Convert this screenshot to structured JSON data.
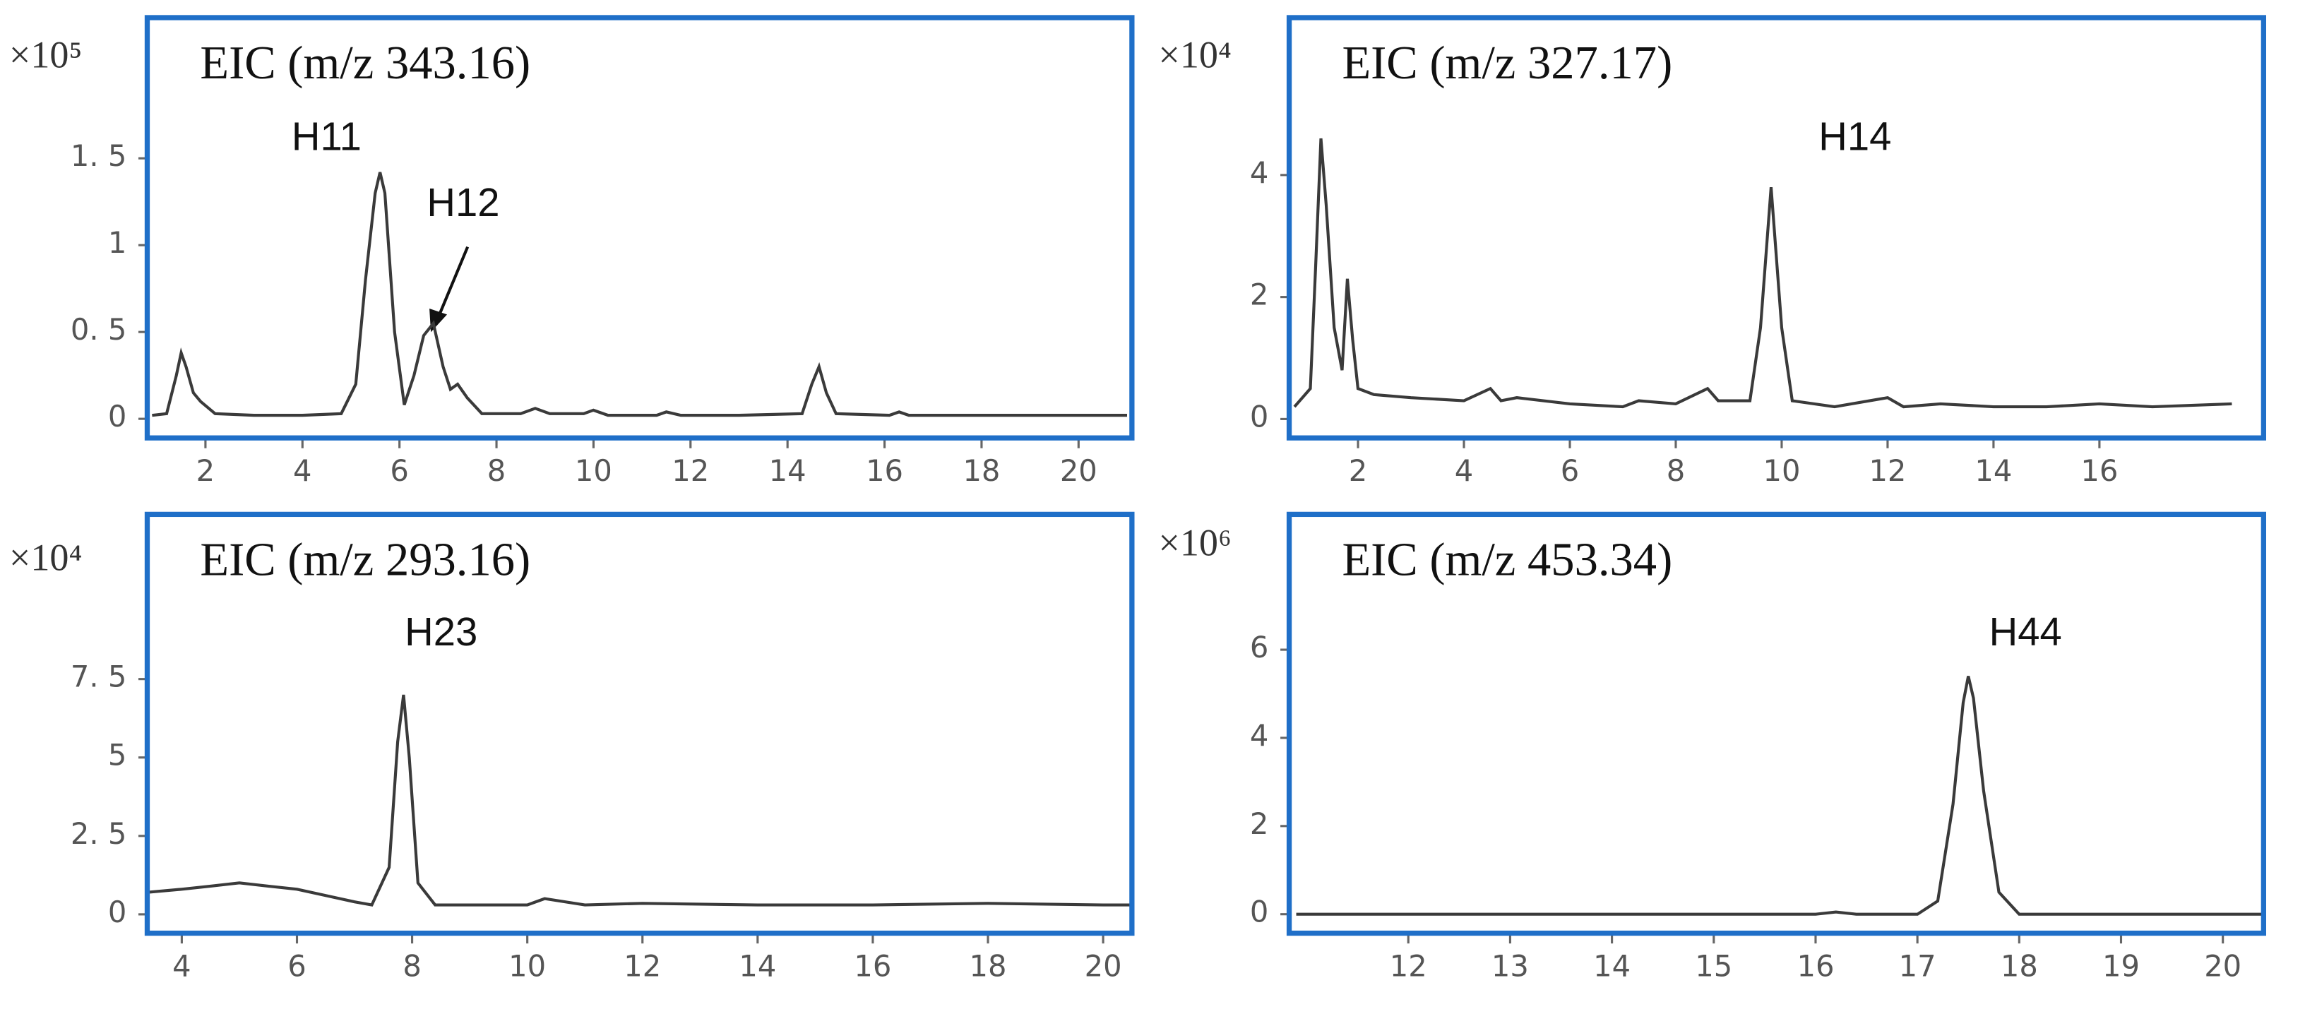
{
  "chart_data": [
    {
      "type": "line",
      "title": "EIC (m/z 343.16)",
      "scale_label": "×10⁵",
      "color": "#3a3a3a",
      "x": [
        0.9,
        1.2,
        1.4,
        1.5,
        1.6,
        1.75,
        1.9,
        2.2,
        3,
        4,
        4.8,
        5.1,
        5.3,
        5.5,
        5.6,
        5.7,
        5.9,
        6.1,
        6.3,
        6.5,
        6.7,
        6.9,
        7.05,
        7.2,
        7.4,
        7.7,
        8.5,
        8.8,
        9.1,
        9.8,
        10,
        10.3,
        11.3,
        11.5,
        11.8,
        13,
        14.3,
        14.5,
        14.65,
        14.8,
        15,
        16.1,
        16.3,
        16.5,
        18,
        20,
        21
      ],
      "values": [
        0.02,
        0.03,
        0.25,
        0.38,
        0.3,
        0.15,
        0.1,
        0.03,
        0.02,
        0.02,
        0.03,
        0.2,
        0.8,
        1.3,
        1.42,
        1.3,
        0.5,
        0.08,
        0.25,
        0.48,
        0.55,
        0.3,
        0.17,
        0.2,
        0.12,
        0.03,
        0.03,
        0.06,
        0.03,
        0.03,
        0.05,
        0.02,
        0.02,
        0.04,
        0.02,
        0.02,
        0.03,
        0.2,
        0.3,
        0.15,
        0.03,
        0.02,
        0.04,
        0.02,
        0.02,
        0.02,
        0.02
      ],
      "xlim": [
        0.8,
        21.1
      ],
      "xticks": [
        2,
        4,
        6,
        8,
        10,
        12,
        14,
        16,
        18,
        20
      ],
      "ylim": [
        -0.11,
        2.31
      ],
      "yticks": [
        0,
        {
          "value": 0.5,
          "label": "0. 5"
        },
        1,
        {
          "value": 1.5,
          "label": "1. 5"
        }
      ],
      "annotations": [
        "H11",
        "H12"
      ]
    },
    {
      "type": "line",
      "title": "EIC (m/z 327.17)",
      "scale_label": "×10⁴",
      "color": "#3a3a3a",
      "x": [
        0.8,
        1.1,
        1.2,
        1.3,
        1.4,
        1.55,
        1.7,
        1.8,
        1.9,
        2.0,
        2.3,
        3,
        4,
        4.5,
        4.7,
        5,
        6,
        7,
        7.3,
        8,
        8.6,
        8.8,
        9.4,
        9.6,
        9.8,
        10.0,
        10.2,
        11,
        12,
        12.3,
        13,
        14,
        15,
        16,
        17,
        18.5
      ],
      "values": [
        0.2,
        0.5,
        2.5,
        4.6,
        3.5,
        1.5,
        0.8,
        2.3,
        1.3,
        0.5,
        0.4,
        0.35,
        0.3,
        0.5,
        0.3,
        0.35,
        0.25,
        0.2,
        0.3,
        0.25,
        0.5,
        0.3,
        0.3,
        1.5,
        3.8,
        1.5,
        0.3,
        0.2,
        0.35,
        0.2,
        0.25,
        0.2,
        0.2,
        0.25,
        0.2,
        0.25
      ],
      "xlim": [
        0.7,
        19.1
      ],
      "xticks": [
        2,
        4,
        6,
        8,
        10,
        12,
        14,
        16
      ],
      "ylim": [
        -0.31,
        6.58
      ],
      "yticks": [
        0,
        2,
        4
      ],
      "annotations": [
        "H14"
      ]
    },
    {
      "type": "line",
      "title": "EIC (m/z 293.16)",
      "scale_label": "×10⁴",
      "color": "#3a3a3a",
      "x": [
        3.4,
        4,
        4.5,
        5,
        5.5,
        6,
        6.5,
        7,
        7.3,
        7.6,
        7.75,
        7.85,
        7.95,
        8.1,
        8.4,
        9,
        10,
        10.3,
        11,
        12,
        14,
        16,
        18,
        20,
        20.5
      ],
      "values": [
        0.7,
        0.8,
        0.9,
        1.0,
        0.9,
        0.8,
        0.6,
        0.4,
        0.3,
        1.5,
        5.5,
        7.0,
        5.0,
        1.0,
        0.3,
        0.3,
        0.3,
        0.5,
        0.3,
        0.35,
        0.3,
        0.3,
        0.35,
        0.3,
        0.3
      ],
      "xlim": [
        3.4,
        20.5
      ],
      "xticks": [
        4,
        6,
        8,
        10,
        12,
        14,
        16,
        18,
        20
      ],
      "ylim": [
        -0.6,
        12.75
      ],
      "yticks": [
        0,
        {
          "value": 2.5,
          "label": "2. 5"
        },
        5,
        {
          "value": 7.5,
          "label": "7. 5"
        }
      ],
      "annotations": [
        "H23"
      ]
    },
    {
      "type": "line",
      "title": "EIC (m/z 453.34)",
      "scale_label": "×10⁶",
      "color": "#3a3a3a",
      "x": [
        10.9,
        12,
        14,
        16,
        16.2,
        16.4,
        17,
        17.2,
        17.35,
        17.45,
        17.5,
        17.55,
        17.65,
        17.8,
        18,
        19,
        20,
        20.4
      ],
      "values": [
        0,
        0,
        0,
        0,
        0.05,
        0,
        0,
        0.3,
        2.5,
        4.8,
        5.4,
        4.9,
        2.8,
        0.5,
        0,
        0,
        0,
        0
      ],
      "xlim": [
        10.83,
        20.4
      ],
      "xticks": [
        12,
        13,
        14,
        15,
        16,
        17,
        18,
        19,
        20
      ],
      "ylim": [
        -0.43,
        9.07
      ],
      "yticks": [
        0,
        2,
        4,
        6
      ],
      "annotations": [
        "H44"
      ]
    }
  ]
}
